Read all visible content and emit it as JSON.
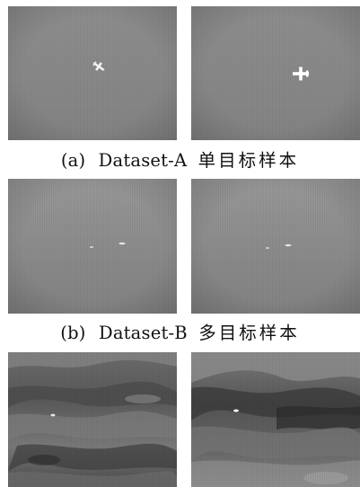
{
  "figure": {
    "rows": [
      {
        "caption": {
          "label": "(a)",
          "dataset": "Dataset-A",
          "text": "单目标样本"
        },
        "panels": [
          {
            "scene": "sky",
            "targets": [
              "airplane"
            ]
          },
          {
            "scene": "sky",
            "targets": [
              "airplane"
            ]
          }
        ]
      },
      {
        "caption": {
          "label": "(b)",
          "dataset": "Dataset-B",
          "text": "多目标样本"
        },
        "panels": [
          {
            "scene": "sky",
            "targets": [
              "small-target",
              "small-target"
            ]
          },
          {
            "scene": "sky",
            "targets": [
              "small-target",
              "small-target"
            ]
          }
        ]
      },
      {
        "panels": [
          {
            "scene": "ground-terrain",
            "targets": [
              "small-target"
            ]
          },
          {
            "scene": "ground-terrain",
            "targets": [
              "small-target"
            ]
          }
        ]
      }
    ]
  }
}
